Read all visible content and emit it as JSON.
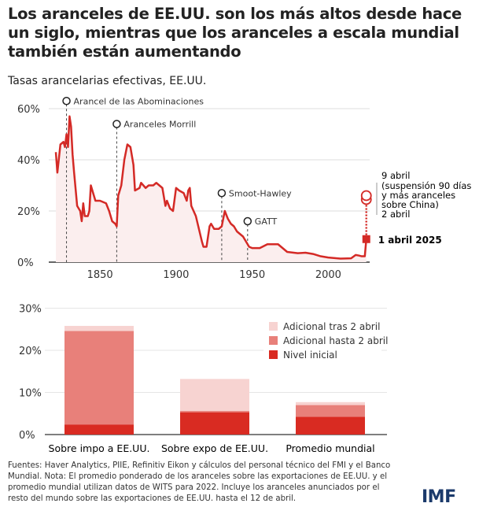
{
  "title": "Los aranceles de EE.UU. son los más altos desde hace un siglo, mientras que los aranceles a escala mundial también están aumentando",
  "subtitle": "Tasas arancelarias efectivas, EE.UU.",
  "footer": "Fuentes: Haver Analytics, PIIE, Refinitiv Eikon y cálculos del personal técnico del FMI y el Banco Mundial. Nota: El promedio ponderado de los aranceles sobre las exportaciones de EE.UU. y el promedio mundial utilizan datos de WITS para 2022. Incluye los aranceles anunciados por el resto del mundo sobre las exportaciones de EE.UU. hasta el 12 de abril.",
  "logo": "IMF",
  "colors": {
    "line": "#d42a26",
    "fill": "#fbeeee",
    "base": "#d92b22",
    "hasta": "#e8807a",
    "tras": "#f7d3d1"
  },
  "chart_data": [
    {
      "type": "line",
      "xlim": [
        1821,
        2025
      ],
      "ylim": [
        0,
        60
      ],
      "yticks": [
        "0%",
        "20%",
        "40%",
        "60%"
      ],
      "ytick_values": [
        0,
        20,
        40,
        60
      ],
      "xticks": [
        "1850",
        "1900",
        "1950",
        "2000"
      ],
      "xtick_values": [
        1850,
        1900,
        1950,
        2000
      ],
      "grid": true,
      "x": [
        1821,
        1822,
        1824,
        1826,
        1827,
        1828,
        1829,
        1830,
        1831,
        1832,
        1833,
        1835,
        1837,
        1838,
        1839,
        1840,
        1842,
        1843,
        1844,
        1845,
        1847,
        1850,
        1854,
        1856,
        1858,
        1860,
        1861,
        1862,
        1864,
        1866,
        1868,
        1870,
        1872,
        1873,
        1876,
        1877,
        1880,
        1882,
        1885,
        1887,
        1889,
        1891,
        1893,
        1894,
        1896,
        1898,
        1900,
        1902,
        1905,
        1907,
        1908,
        1909,
        1910,
        1913,
        1915,
        1917,
        1918,
        1920,
        1922,
        1923,
        1925,
        1928,
        1930,
        1932,
        1934,
        1936,
        1938,
        1940,
        1942,
        1944,
        1946,
        1948,
        1950,
        1955,
        1960,
        1967,
        1970,
        1973,
        1980,
        1985,
        1990,
        1995,
        2000,
        2008,
        2015,
        2018,
        2020,
        2022,
        2024,
        2025
      ],
      "y": [
        43,
        35,
        46,
        47,
        45,
        50,
        45,
        57,
        53,
        42,
        35,
        22,
        20,
        16,
        23,
        18,
        18,
        20,
        30,
        28,
        24,
        24,
        23,
        20,
        16,
        15,
        14,
        26,
        30,
        40,
        46,
        45,
        38,
        28,
        29,
        31,
        29,
        30,
        30,
        31,
        30,
        29,
        22,
        24,
        21,
        20,
        29,
        28,
        27,
        24,
        28,
        29,
        22,
        18,
        13,
        8,
        6,
        6,
        14,
        15,
        13,
        13,
        14,
        20,
        17,
        15,
        14,
        12,
        11,
        10,
        8,
        6,
        5.5,
        5.5,
        7,
        7,
        5.5,
        4,
        3.5,
        3.7,
        3.2,
        2.3,
        1.8,
        1.4,
        1.5,
        2.8,
        2.6,
        2.3,
        2.3,
        9
      ],
      "events": [
        {
          "label": "Arancel de las Abominaciones",
          "year": 1828,
          "marker": 63
        },
        {
          "label": "Aranceles Morrill",
          "year": 1861,
          "marker": 54
        },
        {
          "label": "Smoot-Hawley",
          "year": 1930,
          "marker": 27
        },
        {
          "label": "GATT",
          "year": 1947,
          "marker": 16
        }
      ],
      "points": [
        {
          "label": "1 abril 2025",
          "year": 2025,
          "value": 9
        },
        {
          "label": "2 abril",
          "year": 2025,
          "value": 24.5
        },
        {
          "label": "9 abril",
          "year": 2025,
          "value": 26
        }
      ],
      "note": "(suspensión 90 días y más aranceles sobre China)"
    },
    {
      "type": "bar",
      "stacked": true,
      "categories": [
        "Sobre impo a EE.UU.",
        "Sobre expo de EE.UU.",
        "Promedio mundial"
      ],
      "ylim": [
        0,
        30
      ],
      "yticks": [
        "0%",
        "10%",
        "20%",
        "30%"
      ],
      "ytick_values": [
        0,
        10,
        20,
        30
      ],
      "legend": "top-right",
      "series": [
        {
          "name": "Nivel inicial",
          "values": [
            2.4,
            5.3,
            4.2
          ]
        },
        {
          "name": "Adicional hasta 2 abril",
          "values": [
            22.2,
            0.3,
            2.8
          ]
        },
        {
          "name": "Adicional tras 2 abril",
          "values": [
            1.2,
            7.6,
            0.7
          ]
        }
      ]
    }
  ]
}
